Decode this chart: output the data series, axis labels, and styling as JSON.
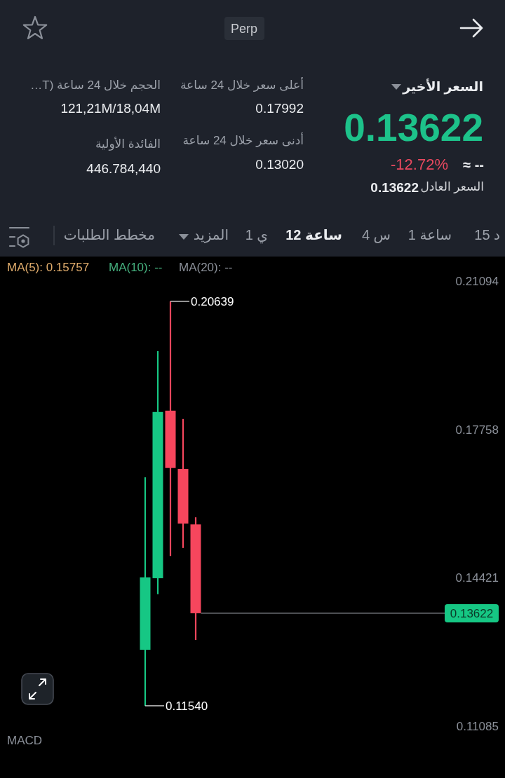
{
  "chart_data": [
    {
      "type": "other",
      "annotations": [
        "Perp",
        "السعر الأخير",
        "0.13622",
        "-12.72%",
        "≈ --",
        "السعر العادل",
        "0.13622",
        "أعلى سعر خلال 24 ساعة",
        "0.17992",
        "أدنى سعر خلال 24 ساعة",
        "0.13020",
        "الحجم خلال 24 ساعة (T…",
        "121,21M/18,04M",
        "الفائدة الأولية",
        "446.784,440",
        "15 د",
        "1 ساعة",
        "4 س",
        "12 ساعة",
        "1 ي",
        "المزيد",
        "مخطط الطلبات"
      ]
    },
    {
      "type": "candlestick",
      "categories": [
        null,
        null,
        null,
        null,
        null,
        null,
        null,
        null,
        null,
        null,
        null,
        null,
        null,
        null,
        null,
        null,
        null,
        null,
        null,
        null,
        null,
        null,
        null,
        null,
        null,
        null,
        null,
        null,
        null,
        null,
        null,
        null,
        null,
        null,
        null,
        null,
        null,
        null,
        null,
        null
      ],
      "ohlc": [
        null,
        null,
        null,
        null,
        null,
        null,
        null,
        null,
        null,
        null,
        null,
        [
          0.128,
          0.1668,
          0.1154,
          0.1443
        ],
        [
          0.1441,
          0.1952,
          0.1405,
          0.1815
        ],
        [
          0.1818,
          0.20639,
          0.1491,
          0.1689
        ],
        [
          0.1687,
          0.17992,
          0.1509,
          0.1564
        ],
        [
          0.1562,
          0.1578,
          0.1302,
          0.13622
        ],
        null,
        null,
        null,
        null,
        null,
        null,
        null,
        null,
        null,
        null,
        null,
        null,
        null,
        null,
        null,
        null,
        null,
        null,
        null,
        null,
        null,
        null,
        null,
        null
      ],
      "colors": [
        null,
        null,
        null,
        null,
        null,
        null,
        null,
        null,
        null,
        null,
        null,
        "#16c784",
        "#16c784",
        "#f6465d",
        "#f6465d",
        "#f6465d",
        null,
        null,
        null,
        null,
        null,
        null,
        null,
        null,
        null,
        null,
        null,
        null,
        null,
        null,
        null,
        null,
        null,
        null,
        null,
        null,
        null,
        null,
        null,
        null
      ],
      "ylim": [
        0.11085,
        0.21094
      ],
      "yticks": [
        0.21094,
        0.17758,
        0.14421,
        0.11085
      ],
      "tick_labels": "y",
      "ref_lines": [
        {
          "axis": "y",
          "value": 0.13622,
          "label": "0.13622",
          "color": "#8a8d93"
        }
      ],
      "annotations": [
        "0.20639",
        "0.11540",
        "MA(5): 0.15757",
        "MA(10): --",
        "MA(20): --",
        "MACD"
      ]
    }
  ]
}
